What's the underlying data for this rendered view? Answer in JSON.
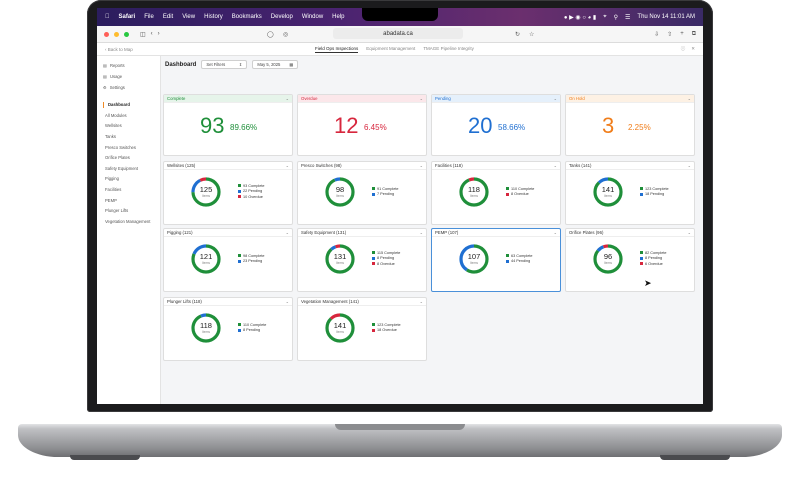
{
  "menubar": {
    "app": "Safari",
    "items": [
      "File",
      "Edit",
      "View",
      "History",
      "Bookmarks",
      "Develop",
      "Window",
      "Help"
    ],
    "datetime": "Thu Nov 14 11:01 AM"
  },
  "browser": {
    "url": "abadata.ca"
  },
  "apptabs": {
    "back": "Back to Map",
    "tabs": [
      "Field Ops Inspections",
      "Equipment Management",
      "TMAGE Pipeline Integrity"
    ],
    "active": 0
  },
  "sidebar": {
    "top_items": [
      "Reports",
      "Usage",
      "Settings"
    ],
    "active_item": "Dashboard",
    "sub_items": [
      "All Modules",
      "Wellsites",
      "Tanks",
      "Presco Switches",
      "Orifice Plates",
      "Safety Equipment",
      "Pigging",
      "Facilities",
      "PEMP",
      "Plunger Lifts",
      "Vegetation Management"
    ]
  },
  "dashboard": {
    "title": "Dashboard",
    "filter_label": "Set Filters",
    "date": "May 5, 2025"
  },
  "stats": [
    {
      "label": "Complete",
      "value": "93",
      "pct": "89.66%",
      "color": "#1f8f3a",
      "bg": "#e6f4ea"
    },
    {
      "label": "Overdue",
      "value": "12",
      "pct": "6.45%",
      "color": "#d7263d",
      "bg": "#fbe7ea"
    },
    {
      "label": "Pending",
      "value": "20",
      "pct": "58.66%",
      "color": "#1f6fd1",
      "bg": "#e5f0fb"
    },
    {
      "label": "On Hold",
      "value": "3",
      "pct": "2.25%",
      "color": "#f07d1a",
      "bg": "#fdf1e4"
    }
  ],
  "items_label": "Items",
  "modules": [
    {
      "name": "Wellsites (125)",
      "total": "125",
      "complete": 93,
      "pending": 22,
      "overdue": 10,
      "legend": [
        "93 Complete",
        "22 Pending",
        "10 Overdue"
      ]
    },
    {
      "name": "Presco Switches (98)",
      "total": "98",
      "complete": 91,
      "pending": 7,
      "overdue": 0,
      "legend": [
        "91 Complete",
        "7 Pending"
      ]
    },
    {
      "name": "Facilities (118)",
      "total": "118",
      "complete": 110,
      "pending": 0,
      "overdue": 8,
      "legend": [
        "110 Complete",
        "8 Overdue"
      ]
    },
    {
      "name": "Tanks (141)",
      "total": "141",
      "complete": 123,
      "pending": 18,
      "overdue": 0,
      "legend": [
        "123 Complete",
        "18 Pending"
      ]
    },
    {
      "name": "Pigging (121)",
      "total": "121",
      "complete": 98,
      "pending": 23,
      "overdue": 0,
      "legend": [
        "98 Complete",
        "23 Pending"
      ]
    },
    {
      "name": "Safety Equipment (131)",
      "total": "131",
      "complete": 115,
      "pending": 8,
      "overdue": 8,
      "legend": [
        "115 Complete",
        "8 Pending",
        "8 Overdue"
      ]
    },
    {
      "name": "PEMP (107)",
      "total": "107",
      "complete": 63,
      "pending": 44,
      "overdue": 0,
      "legend": [
        "63 Complete",
        "44 Pending"
      ]
    },
    {
      "name": "Orifice Plates (96)",
      "total": "96",
      "complete": 82,
      "pending": 8,
      "overdue": 6,
      "legend": [
        "82 Complete",
        "8 Pending",
        "6 Overdue"
      ]
    },
    {
      "name": "Plunger Lifts (118)",
      "total": "118",
      "complete": 110,
      "pending": 8,
      "overdue": 0,
      "legend": [
        "110 Complete",
        "8 Pending"
      ]
    },
    {
      "name": "Vegetation Management (141)",
      "total": "141",
      "complete": 123,
      "pending": 0,
      "overdue": 18,
      "legend": [
        "123 Complete",
        "18 Overdue"
      ]
    }
  ],
  "colors": {
    "complete": "#1f8f3a",
    "pending": "#1f6fd1",
    "overdue": "#d7263d",
    "selected_border": "#4a90d9"
  },
  "selected_module": 6
}
